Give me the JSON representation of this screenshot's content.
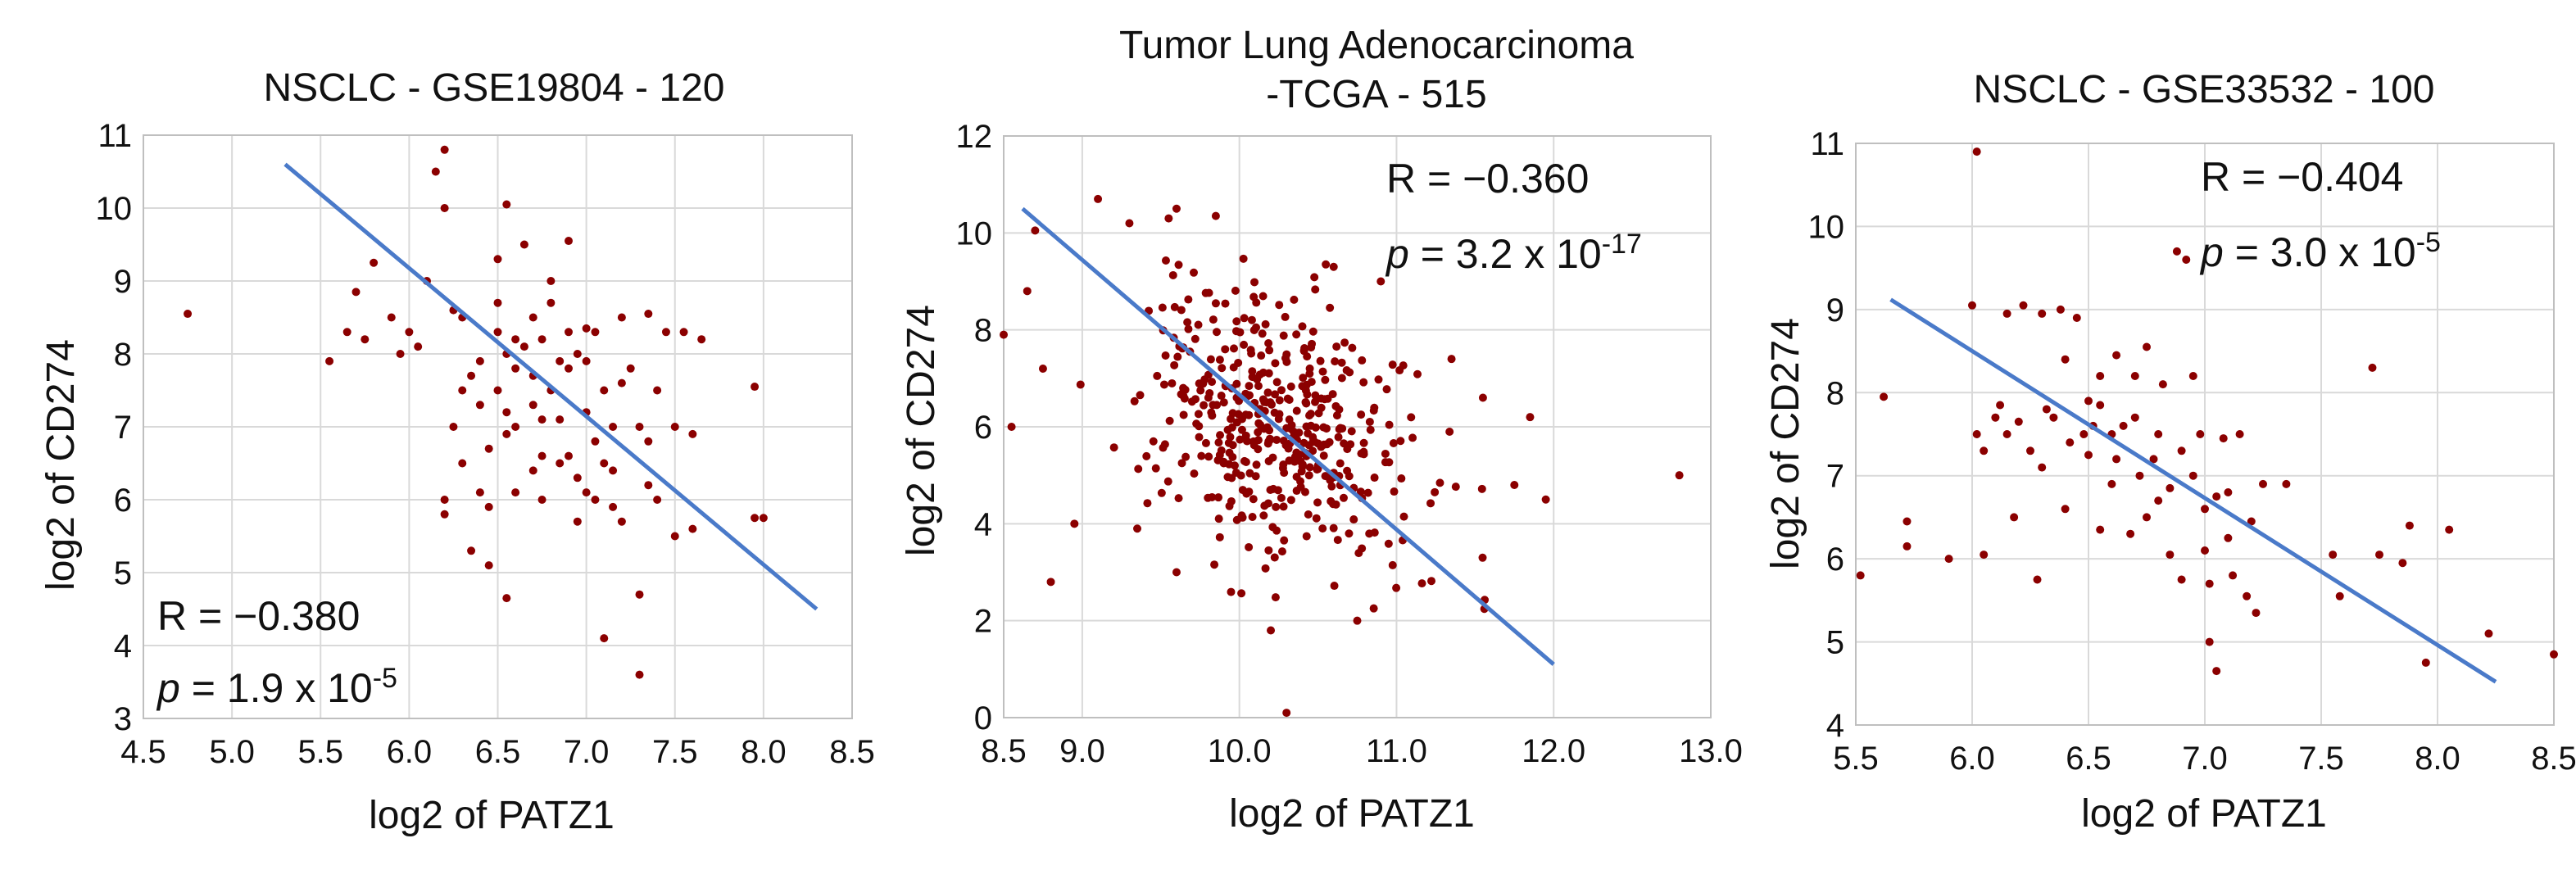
{
  "colors": {
    "point": "#8b0000",
    "fit_line": "#4a7ac9",
    "grid": "#d9d9d9",
    "frame": "#bfbfbf"
  },
  "chart_data": [
    {
      "type": "scatter",
      "title": "NSCLC - GSE19804 - 120",
      "xlabel": "log2 of PATZ1",
      "ylabel": "log2 of CD274",
      "xlim": [
        4.5,
        8.5
      ],
      "ylim": [
        3,
        11
      ],
      "xticks": [
        "4.5",
        "5.0",
        "5.5",
        "6.0",
        "6.5",
        "7.0",
        "7.5",
        "8.0",
        "8.5"
      ],
      "yticks": [
        "3",
        "4",
        "5",
        "6",
        "7",
        "8",
        "9",
        "10",
        "11"
      ],
      "grid": true,
      "fit_line": [
        [
          5.3,
          10.6
        ],
        [
          8.3,
          4.5
        ]
      ],
      "stats": {
        "r_label": "R = ",
        "r_value": "−0.380",
        "p_italic": "p",
        "p_text": " = 1.9 x 10",
        "p_exp": "-5"
      },
      "points": [
        [
          4.75,
          8.55
        ],
        [
          5.55,
          7.9
        ],
        [
          5.65,
          8.3
        ],
        [
          5.7,
          8.85
        ],
        [
          5.75,
          8.2
        ],
        [
          5.8,
          9.25
        ],
        [
          5.9,
          8.5
        ],
        [
          5.95,
          8.0
        ],
        [
          6.05,
          8.1
        ],
        [
          6.1,
          9.0
        ],
        [
          6.15,
          10.5
        ],
        [
          6.2,
          10.8
        ],
        [
          6.2,
          10.0
        ],
        [
          6.2,
          6.0
        ],
        [
          6.2,
          5.8
        ],
        [
          6.25,
          7.0
        ],
        [
          6.3,
          7.5
        ],
        [
          6.3,
          8.5
        ],
        [
          6.35,
          7.7
        ],
        [
          6.35,
          5.3
        ],
        [
          6.4,
          6.1
        ],
        [
          6.4,
          7.3
        ],
        [
          6.45,
          5.1
        ],
        [
          6.45,
          5.9
        ],
        [
          6.5,
          9.3
        ],
        [
          6.5,
          7.5
        ],
        [
          6.5,
          8.7
        ],
        [
          6.5,
          8.3
        ],
        [
          6.55,
          10.05
        ],
        [
          6.55,
          8.0
        ],
        [
          6.55,
          7.2
        ],
        [
          6.55,
          4.65
        ],
        [
          6.6,
          8.2
        ],
        [
          6.6,
          7.8
        ],
        [
          6.6,
          6.1
        ],
        [
          6.65,
          9.5
        ],
        [
          6.65,
          8.1
        ],
        [
          6.7,
          7.7
        ],
        [
          6.7,
          6.4
        ],
        [
          6.7,
          7.3
        ],
        [
          6.75,
          6.6
        ],
        [
          6.75,
          8.2
        ],
        [
          6.75,
          6.0
        ],
        [
          6.8,
          9.0
        ],
        [
          6.8,
          7.5
        ],
        [
          6.8,
          8.7
        ],
        [
          6.85,
          6.5
        ],
        [
          6.85,
          7.1
        ],
        [
          6.9,
          9.55
        ],
        [
          6.9,
          8.3
        ],
        [
          6.9,
          7.8
        ],
        [
          6.95,
          8.0
        ],
        [
          6.95,
          5.7
        ],
        [
          7.0,
          8.35
        ],
        [
          7.0,
          7.2
        ],
        [
          7.0,
          6.1
        ],
        [
          7.05,
          8.3
        ],
        [
          7.05,
          6.8
        ],
        [
          7.05,
          6.0
        ],
        [
          7.1,
          7.5
        ],
        [
          7.1,
          6.5
        ],
        [
          7.1,
          4.1
        ],
        [
          7.15,
          6.4
        ],
        [
          7.15,
          5.9
        ],
        [
          7.2,
          8.5
        ],
        [
          7.2,
          7.6
        ],
        [
          7.2,
          5.7
        ],
        [
          7.3,
          7.0
        ],
        [
          7.3,
          4.7
        ],
        [
          7.3,
          3.6
        ],
        [
          7.35,
          8.55
        ],
        [
          7.35,
          6.2
        ],
        [
          7.4,
          7.5
        ],
        [
          7.4,
          6.0
        ],
        [
          7.45,
          8.3
        ],
        [
          7.5,
          7.0
        ],
        [
          7.5,
          5.5
        ],
        [
          7.55,
          8.3
        ],
        [
          7.6,
          6.9
        ],
        [
          7.65,
          8.2
        ],
        [
          7.95,
          7.55
        ],
        [
          7.95,
          5.75
        ],
        [
          8.0,
          5.75
        ],
        [
          6.0,
          8.3
        ],
        [
          6.3,
          6.5
        ],
        [
          6.4,
          7.9
        ],
        [
          6.45,
          6.7
        ],
        [
          6.6,
          7.0
        ],
        [
          6.7,
          8.5
        ],
        [
          6.9,
          6.6
        ],
        [
          7.0,
          7.9
        ],
        [
          7.25,
          7.8
        ],
        [
          7.15,
          7.0
        ],
        [
          6.85,
          7.9
        ],
        [
          6.95,
          6.3
        ],
        [
          7.35,
          6.8
        ],
        [
          7.6,
          5.6
        ],
        [
          6.55,
          6.9
        ],
        [
          6.25,
          8.6
        ],
        [
          6.75,
          7.1
        ]
      ]
    },
    {
      "type": "scatter",
      "title": "Tumor Lung Adenocarcinoma",
      "title_line2": "-TCGA - 515",
      "xlabel": "log2 of PATZ1",
      "ylabel": "log2 of CD274",
      "xlim": [
        8.5,
        13.0
      ],
      "ylim": [
        0,
        12
      ],
      "xticks": [
        "8.5",
        "9.0",
        "10.0",
        "11.0",
        "12.0",
        "13.0"
      ],
      "yticks": [
        "0",
        "2",
        "4",
        "6",
        "8",
        "10",
        "12"
      ],
      "grid": true,
      "fit_line": [
        [
          8.62,
          10.5
        ],
        [
          12.0,
          1.1
        ]
      ],
      "stats": {
        "r_label": "R = ",
        "r_value": "−0.360",
        "p_italic": "p",
        "p_text": " = 3.2 x 10",
        "p_exp": "-17"
      },
      "points": [
        [
          8.5,
          7.9
        ],
        [
          8.55,
          6.0
        ],
        [
          8.65,
          8.8
        ],
        [
          8.7,
          10.05
        ],
        [
          8.75,
          7.2
        ],
        [
          8.8,
          2.8
        ],
        [
          8.95,
          4.0
        ],
        [
          9.1,
          10.7
        ],
        [
          9.3,
          10.2
        ],
        [
          9.35,
          3.9
        ],
        [
          9.55,
          10.3
        ],
        [
          9.6,
          10.5
        ],
        [
          9.6,
          3.0
        ],
        [
          9.85,
          10.35
        ],
        [
          10.2,
          1.8
        ],
        [
          10.3,
          0.1
        ],
        [
          10.55,
          9.35
        ],
        [
          10.6,
          9.3
        ],
        [
          10.75,
          2.0
        ],
        [
          10.9,
          9.0
        ],
        [
          11.35,
          7.4
        ],
        [
          11.55,
          6.6
        ],
        [
          11.75,
          4.8
        ],
        [
          11.85,
          6.2
        ],
        [
          11.95,
          4.5
        ],
        [
          12.8,
          5.0
        ]
      ],
      "cloud": {
        "n": 430,
        "center": [
          10.25,
          6.0
        ],
        "spread": [
          0.42,
          1.45
        ],
        "corr": -0.38,
        "seed": 7
      }
    },
    {
      "type": "scatter",
      "title": "NSCLC - GSE33532 - 100",
      "xlabel": "log2 of PATZ1",
      "ylabel": "log2 of CD274",
      "xlim": [
        5.5,
        8.5
      ],
      "ylim": [
        4,
        11
      ],
      "xticks": [
        "5.5",
        "6.0",
        "6.5",
        "7.0",
        "7.5",
        "8.0",
        "8.5"
      ],
      "yticks": [
        "4",
        "5",
        "6",
        "7",
        "8",
        "9",
        "10",
        "11"
      ],
      "grid": true,
      "fit_line": [
        [
          5.65,
          9.12
        ],
        [
          8.25,
          4.52
        ]
      ],
      "stats": {
        "r_label": "R = ",
        "r_value": "−0.404",
        "p_italic": "p",
        "p_text": " = 3.0 x 10",
        "p_exp": "-5"
      },
      "points": [
        [
          5.52,
          5.8
        ],
        [
          5.62,
          7.95
        ],
        [
          5.72,
          6.45
        ],
        [
          5.72,
          6.15
        ],
        [
          5.9,
          6.0
        ],
        [
          6.0,
          9.05
        ],
        [
          6.02,
          10.9
        ],
        [
          6.02,
          7.5
        ],
        [
          6.05,
          7.3
        ],
        [
          6.05,
          6.05
        ],
        [
          6.1,
          7.7
        ],
        [
          6.12,
          7.85
        ],
        [
          6.15,
          8.95
        ],
        [
          6.15,
          7.5
        ],
        [
          6.18,
          6.5
        ],
        [
          6.2,
          7.65
        ],
        [
          6.22,
          9.05
        ],
        [
          6.25,
          7.3
        ],
        [
          6.28,
          5.75
        ],
        [
          6.3,
          8.95
        ],
        [
          6.32,
          7.8
        ],
        [
          6.35,
          7.7
        ],
        [
          6.38,
          9.0
        ],
        [
          6.4,
          8.4
        ],
        [
          6.42,
          7.4
        ],
        [
          6.45,
          8.9
        ],
        [
          6.48,
          7.5
        ],
        [
          6.5,
          7.25
        ],
        [
          6.52,
          7.6
        ],
        [
          6.55,
          7.85
        ],
        [
          6.55,
          6.35
        ],
        [
          6.6,
          7.5
        ],
        [
          6.62,
          8.45
        ],
        [
          6.62,
          7.2
        ],
        [
          6.65,
          7.6
        ],
        [
          6.68,
          6.3
        ],
        [
          6.7,
          8.2
        ],
        [
          6.72,
          7.0
        ],
        [
          6.75,
          8.55
        ],
        [
          6.75,
          6.5
        ],
        [
          6.78,
          7.2
        ],
        [
          6.8,
          6.7
        ],
        [
          6.82,
          8.1
        ],
        [
          6.85,
          6.85
        ],
        [
          6.85,
          6.05
        ],
        [
          6.88,
          9.7
        ],
        [
          6.9,
          7.3
        ],
        [
          6.9,
          5.75
        ],
        [
          6.92,
          9.6
        ],
        [
          6.95,
          8.2
        ],
        [
          6.98,
          7.5
        ],
        [
          7.0,
          6.6
        ],
        [
          7.0,
          6.1
        ],
        [
          7.02,
          5.7
        ],
        [
          7.02,
          5.0
        ],
        [
          7.05,
          6.75
        ],
        [
          7.05,
          4.65
        ],
        [
          7.08,
          7.45
        ],
        [
          7.1,
          6.25
        ],
        [
          7.12,
          5.8
        ],
        [
          7.15,
          7.5
        ],
        [
          7.18,
          5.55
        ],
        [
          7.2,
          6.45
        ],
        [
          7.22,
          5.35
        ],
        [
          7.25,
          6.9
        ],
        [
          7.35,
          6.9
        ],
        [
          7.55,
          6.05
        ],
        [
          7.58,
          5.55
        ],
        [
          7.72,
          8.3
        ],
        [
          7.75,
          6.05
        ],
        [
          7.85,
          5.95
        ],
        [
          7.88,
          6.4
        ],
        [
          7.95,
          4.75
        ],
        [
          8.05,
          6.35
        ],
        [
          8.22,
          5.1
        ],
        [
          8.5,
          4.85
        ],
        [
          6.5,
          7.9
        ],
        [
          6.3,
          7.1
        ],
        [
          6.7,
          7.7
        ],
        [
          6.95,
          7.0
        ],
        [
          6.6,
          6.9
        ],
        [
          6.8,
          7.5
        ],
        [
          7.1,
          6.8
        ],
        [
          6.4,
          6.6
        ],
        [
          6.55,
          8.2
        ]
      ]
    }
  ]
}
